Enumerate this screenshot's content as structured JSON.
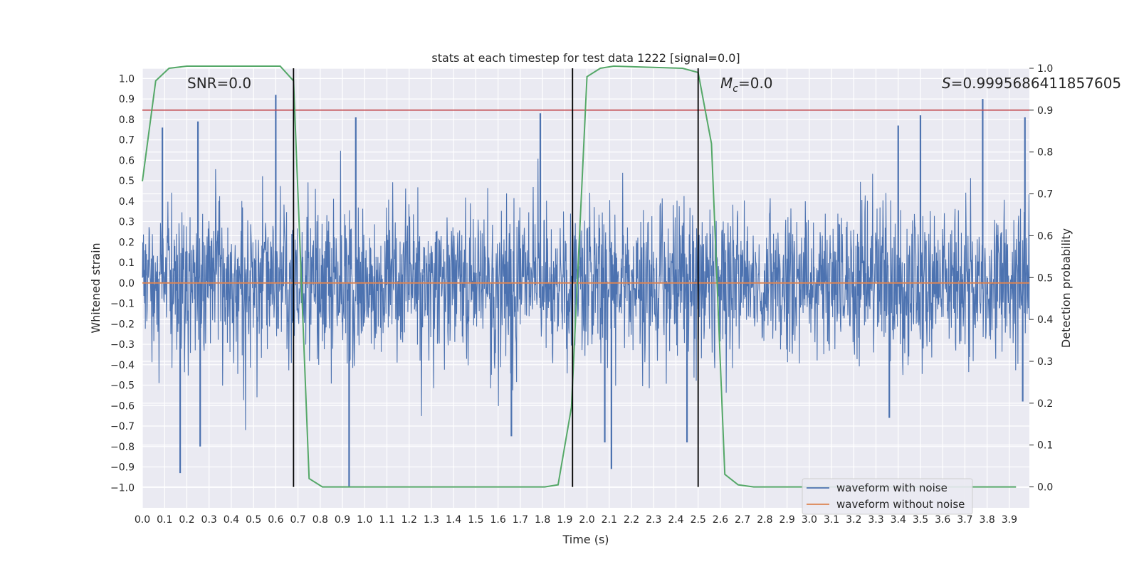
{
  "chart_data": {
    "type": "line",
    "title": "stats at each timestep for test data 1222 [signal=0.0]",
    "xlabel": "Time (s)",
    "ylabel": "Whitened strain",
    "y2label": "Detection probability",
    "xlim": [
      0.0,
      3.99
    ],
    "ylim": [
      -1.1,
      1.05
    ],
    "y2lim": [
      -0.05,
      1.0
    ],
    "x_ticks": [
      "0.0",
      "0.1",
      "0.2",
      "0.3",
      "0.4",
      "0.5",
      "0.6",
      "0.7",
      "0.8",
      "0.9",
      "1.0",
      "1.1",
      "1.2",
      "1.3",
      "1.4",
      "1.5",
      "1.6",
      "1.7",
      "1.8",
      "1.9",
      "2.0",
      "2.1",
      "2.2",
      "2.3",
      "2.4",
      "2.5",
      "2.6",
      "2.7",
      "2.8",
      "2.9",
      "3.0",
      "3.1",
      "3.2",
      "3.3",
      "3.4",
      "3.5",
      "3.6",
      "3.7",
      "3.8",
      "3.9"
    ],
    "y_ticks": [
      "1.0",
      "0.9",
      "0.8",
      "0.7",
      "0.6",
      "0.5",
      "0.4",
      "0.3",
      "0.2",
      "0.1",
      "0.0",
      "-0.1",
      "-0.2",
      "-0.3",
      "-0.4",
      "-0.5",
      "-0.6",
      "-0.7",
      "-0.8",
      "-0.9",
      "-1.0"
    ],
    "y2_ticks": [
      "1.0",
      "0.9",
      "0.8",
      "0.7",
      "0.6",
      "0.5",
      "0.4",
      "0.3",
      "0.2",
      "0.1",
      "0.0"
    ],
    "annotations": {
      "snr": "SNR=0.0",
      "mc": "$M_c$=0.0",
      "s": "$S$=0.9995686411857605"
    },
    "threshold_y2": 0.9,
    "vertical_lines_x": [
      0.68,
      1.935,
      2.5
    ],
    "series": [
      {
        "name": "waveform with noise",
        "color": "#4c72b0",
        "noise_std": 0.19,
        "peaks": [
          {
            "x": 0.09,
            "y": 0.76
          },
          {
            "x": 0.25,
            "y": 0.79
          },
          {
            "x": 0.6,
            "y": 0.92
          },
          {
            "x": 0.96,
            "y": 0.81
          },
          {
            "x": 1.79,
            "y": 0.83
          },
          {
            "x": 3.4,
            "y": 0.77
          },
          {
            "x": 3.5,
            "y": 0.82
          },
          {
            "x": 3.78,
            "y": 0.9
          },
          {
            "x": 3.97,
            "y": 0.81
          },
          {
            "x": 0.17,
            "y": -0.93
          },
          {
            "x": 0.26,
            "y": -0.8
          },
          {
            "x": 0.93,
            "y": -1.0
          },
          {
            "x": 1.66,
            "y": -0.75
          },
          {
            "x": 2.08,
            "y": -0.78
          },
          {
            "x": 2.11,
            "y": -0.91
          },
          {
            "x": 2.45,
            "y": -0.78
          },
          {
            "x": 3.36,
            "y": -0.66
          },
          {
            "x": 3.96,
            "y": -0.58
          }
        ]
      },
      {
        "name": "waveform without noise",
        "color": "#dd8452",
        "value": 0.0
      },
      {
        "name": "",
        "color": "#55a868",
        "axis": "y2",
        "x": [
          0.0,
          0.06,
          0.12,
          0.2,
          0.3,
          0.4,
          0.5,
          0.62,
          0.68,
          0.75,
          0.81,
          0.87,
          0.93,
          1.0,
          1.5,
          1.81,
          1.87,
          1.93,
          2.0,
          2.06,
          2.12,
          2.43,
          2.5,
          2.56,
          2.62,
          2.68,
          2.75,
          3.0,
          3.5,
          3.93
        ],
        "y": [
          0.73,
          0.97,
          1.0,
          1.005,
          1.005,
          1.005,
          1.005,
          1.005,
          0.97,
          0.02,
          0.0,
          0.0,
          0.0,
          0.0,
          0.0,
          0.0,
          0.005,
          0.19,
          0.98,
          1.0,
          1.005,
          1.0,
          0.99,
          0.82,
          0.03,
          0.005,
          0.0,
          0.0,
          0.0,
          0.0
        ]
      }
    ],
    "legend": "lower-right",
    "grid": true
  },
  "colors": {
    "axes_bg": "#eaeaf2",
    "grid": "#ffffff",
    "threshold": "#c44e52",
    "vline": "#000000"
  }
}
